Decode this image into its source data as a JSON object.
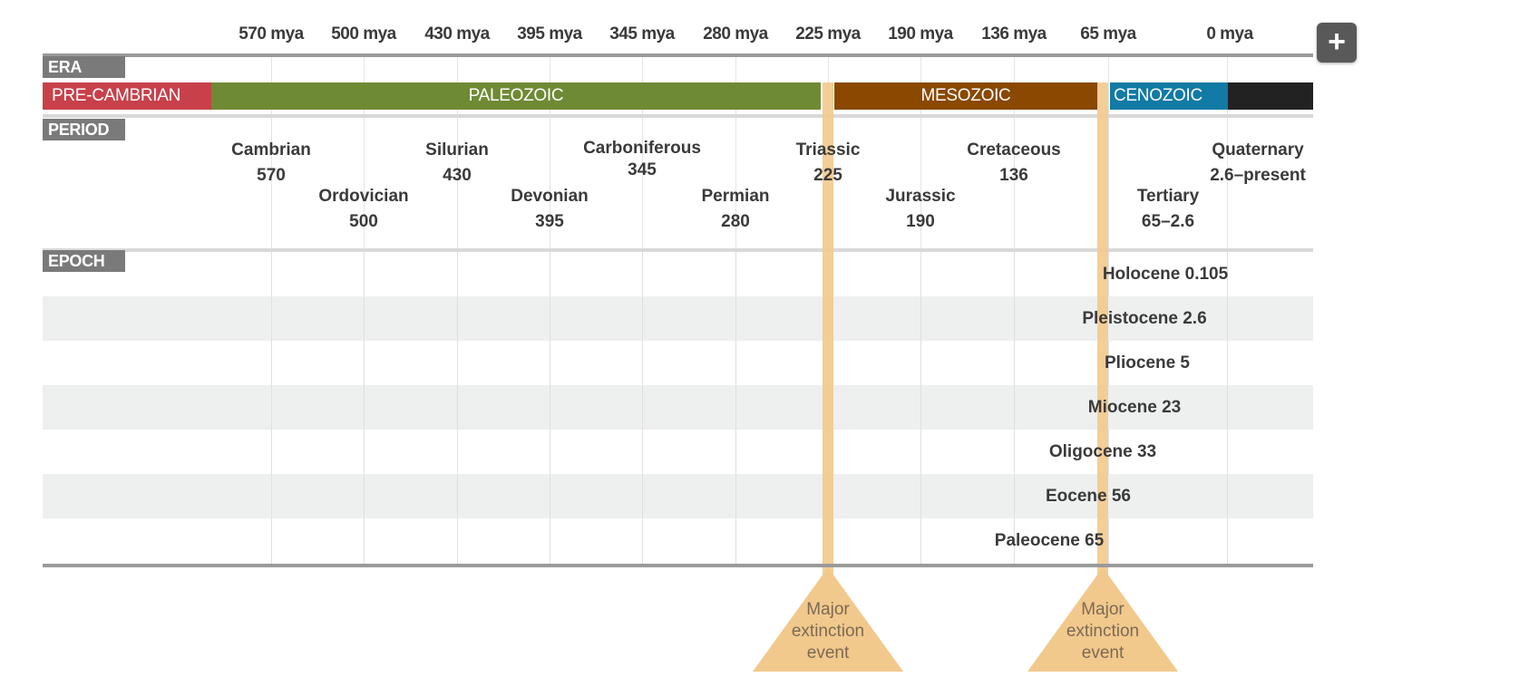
{
  "time_axis": {
    "labels": [
      "570 mya",
      "500 mya",
      "430 mya",
      "395 mya",
      "345 mya",
      "280 mya",
      "225 mya",
      "190 mya",
      "136 mya",
      "65 mya",
      "0 mya"
    ]
  },
  "sections": {
    "era": "ERA",
    "period": "PERIOD",
    "epoch": "EPOCH"
  },
  "eras": [
    {
      "name": "PRE-CAMBRIAN",
      "color": "#c8414a"
    },
    {
      "name": "PALEOZOIC",
      "color": "#6f8a34"
    },
    {
      "name": "MESOZOIC",
      "color": "#8a4800"
    },
    {
      "name": "CENOZOIC",
      "color": "#117aa5"
    }
  ],
  "era_end_color": "#222222",
  "periods": [
    {
      "name": "Cambrian",
      "start": "570"
    },
    {
      "name": "Ordovician",
      "start": "500"
    },
    {
      "name": "Silurian",
      "start": "430"
    },
    {
      "name": "Devonian",
      "start": "395"
    },
    {
      "name": "Carboniferous",
      "start": "345"
    },
    {
      "name": "Permian",
      "start": "280"
    },
    {
      "name": "Triassic",
      "start": "225"
    },
    {
      "name": "Jurassic",
      "start": "190"
    },
    {
      "name": "Cretaceous",
      "start": "136"
    },
    {
      "name": "Tertiary",
      "start": "65–2.6"
    },
    {
      "name": "Quaternary",
      "start": "2.6–present"
    }
  ],
  "epochs": [
    {
      "name": "Holocene 0.105"
    },
    {
      "name": "Pleistocene 2.6"
    },
    {
      "name": "Pliocene 5"
    },
    {
      "name": "Miocene 23"
    },
    {
      "name": "Oligocene 33"
    },
    {
      "name": "Eocene 56"
    },
    {
      "name": "Paleocene 65"
    }
  ],
  "extinction_events": [
    {
      "line1": "Major",
      "line2": "extinction",
      "line3": "event",
      "at": "225 mya"
    },
    {
      "line1": "Major",
      "line2": "extinction",
      "line3": "event",
      "at": "65 mya"
    }
  ],
  "controls": {
    "expand_symbol": "+"
  },
  "colors": {
    "extinction": "#f2c98c",
    "section_tab": "#7a7a7a",
    "shade_row": "#eeefef"
  }
}
